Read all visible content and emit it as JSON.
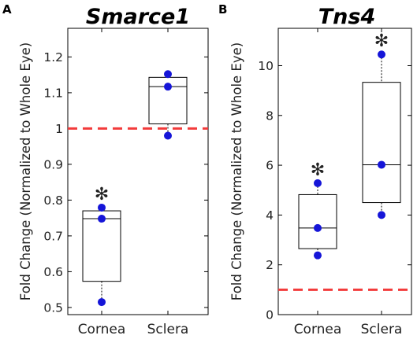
{
  "chart_data": [
    {
      "type": "box",
      "panel_label": "A",
      "title": "Smarce1",
      "ylabel": "Fold Change (Normalized to Whole Eye)",
      "ylim": [
        0.48,
        1.28
      ],
      "yticks": [
        "0.5",
        "0.6",
        "0.7",
        "0.8",
        "0.9",
        "1",
        "1.1",
        "1.2"
      ],
      "reference_line": 1,
      "categories": [
        "Cornea",
        "Sclera"
      ],
      "boxes": [
        {
          "min": 0.515,
          "q1": 0.573,
          "median": 0.748,
          "q3": 0.77,
          "max": 0.779,
          "points": [
            0.515,
            0.748,
            0.779
          ],
          "marker": "✻"
        },
        {
          "min": 0.98,
          "q1": 1.013,
          "median": 1.117,
          "q3": 1.143,
          "max": 1.152,
          "points": [
            0.98,
            1.117,
            1.152
          ],
          "marker": ""
        }
      ],
      "colors": {
        "box": "#000000",
        "points": "#1515d8",
        "reference": "#f23b3b"
      }
    },
    {
      "type": "box",
      "panel_label": "B",
      "title": "Tns4",
      "ylabel": "Fold Change (Normalized to Whole Eye)",
      "ylim": [
        0,
        11.5
      ],
      "yticks": [
        "0",
        "2",
        "4",
        "6",
        "8",
        "10"
      ],
      "reference_line": 1,
      "categories": [
        "Cornea",
        "Sclera"
      ],
      "boxes": [
        {
          "min": 2.38,
          "q1": 2.65,
          "median": 3.48,
          "q3": 4.82,
          "max": 5.28,
          "points": [
            2.38,
            3.48,
            5.28
          ],
          "marker": "✻"
        },
        {
          "min": 4.0,
          "q1": 4.5,
          "median": 6.02,
          "q3": 9.33,
          "max": 10.45,
          "points": [
            4.0,
            6.02,
            10.45
          ],
          "marker": "✻"
        }
      ],
      "colors": {
        "box": "#000000",
        "points": "#1515d8",
        "reference": "#f23b3b"
      }
    }
  ]
}
